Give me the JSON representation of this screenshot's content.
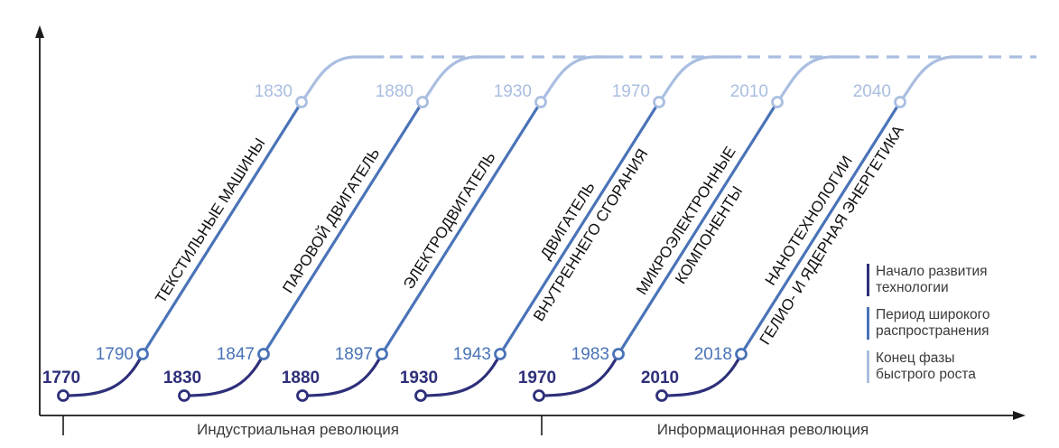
{
  "colors": {
    "start": "#2e2f7a",
    "spread": "#4a73b8",
    "end": "#a9bee0",
    "axis": "#1a1a1a",
    "text": "#3a3a3a"
  },
  "revolutions": [
    {
      "label": "Индустриальная революция"
    },
    {
      "label": "Информационная революция"
    }
  ],
  "technologies": [
    {
      "name_lines": [
        "ТЕКСТИЛЬНЫЕ МАШИНЫ"
      ],
      "start_year": "1770",
      "spread_year": "1790",
      "end_year": "1830"
    },
    {
      "name_lines": [
        "ПАРОВОЙ ДВИГАТЕЛЬ"
      ],
      "start_year": "1830",
      "spread_year": "1847",
      "end_year": "1880"
    },
    {
      "name_lines": [
        "ЭЛЕКТРОДВИГАТЕЛЬ"
      ],
      "start_year": "1880",
      "spread_year": "1897",
      "end_year": "1930"
    },
    {
      "name_lines": [
        "ДВИГАТЕЛЬ",
        "ВНУТРЕННЕГО СГОРАНИЯ"
      ],
      "start_year": "1930",
      "spread_year": "1943",
      "end_year": "1970"
    },
    {
      "name_lines": [
        "МИКРОЭЛЕКТРОННЫЕ",
        "КОМПОНЕНТЫ"
      ],
      "start_year": "1970",
      "spread_year": "1983",
      "end_year": "2010"
    },
    {
      "name_lines": [
        "НАНОТЕХНОЛОГИИ",
        "ГЕЛИО- И ЯДЕРНАЯ ЭНЕРГЕТИКА"
      ],
      "start_year": "2010",
      "spread_year": "2018",
      "end_year": "2040"
    }
  ],
  "legend": [
    {
      "lines": [
        "Начало развития",
        "технологии"
      ],
      "color": "#2e2f7a"
    },
    {
      "lines": [
        "Период широкого",
        "распространения"
      ],
      "color": "#4a73b8"
    },
    {
      "lines": [
        "Конец фазы",
        "быстрого роста"
      ],
      "color": "#a9bee0"
    }
  ]
}
